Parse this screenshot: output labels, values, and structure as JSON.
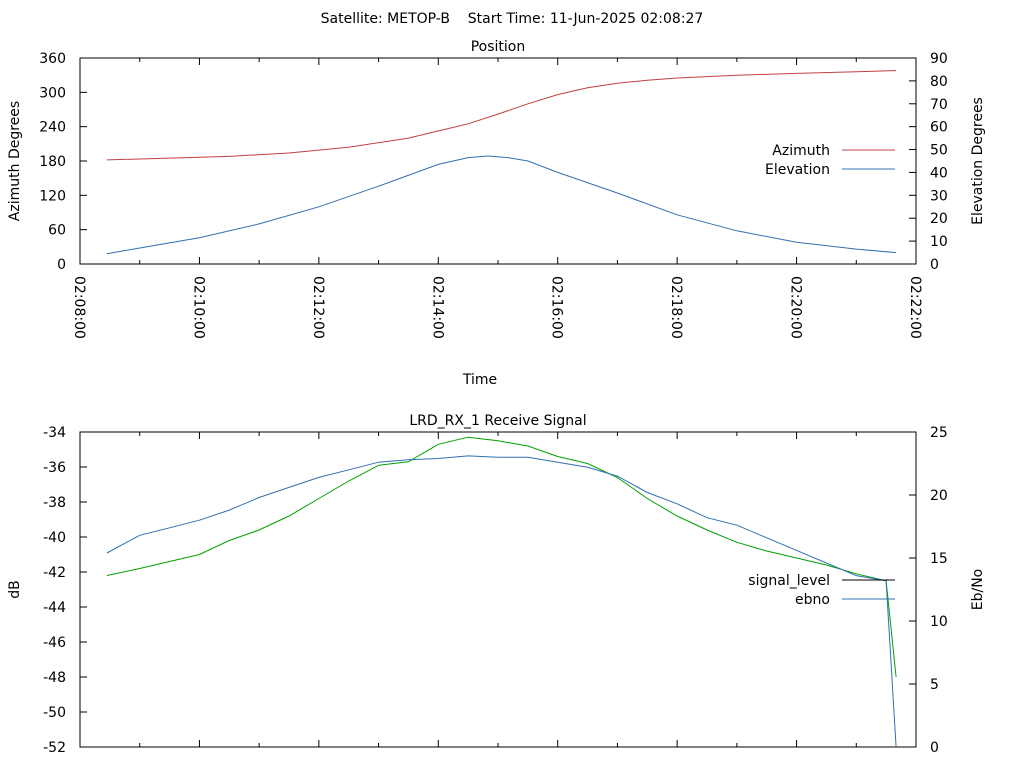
{
  "header": {
    "title": "Satellite: METOP-B    Start Time: 11-Jun-2025 02:08:27"
  },
  "chart_data": [
    {
      "type": "line",
      "title": "Position",
      "xlabel": "Time",
      "ylabel": "Azimuth Degrees",
      "y2label": "Elevation Degrees",
      "x_ticks": [
        "02:08:00",
        "02:10:00",
        "02:12:00",
        "02:14:00",
        "02:16:00",
        "02:18:00",
        "02:20:00",
        "02:22:00"
      ],
      "xlim": [
        "02:08:00",
        "02:22:00"
      ],
      "ylim": [
        0,
        360
      ],
      "y_ticks": [
        0,
        60,
        120,
        180,
        240,
        300,
        360
      ],
      "y2lim": [
        0,
        90
      ],
      "y2_ticks": [
        0,
        10,
        20,
        30,
        40,
        50,
        60,
        70,
        80,
        90
      ],
      "legend_position": "right",
      "grid": false,
      "series": [
        {
          "name": "Azimuth",
          "axis": "y",
          "color": "#c04040",
          "points": [
            [
              "02:08:27",
              182
            ],
            [
              "02:09:30",
              185
            ],
            [
              "02:10:30",
              188
            ],
            [
              "02:11:30",
              194
            ],
            [
              "02:12:30",
              204
            ],
            [
              "02:13:30",
              220
            ],
            [
              "02:14:30",
              245
            ],
            [
              "02:15:00",
              262
            ],
            [
              "02:15:30",
              280
            ],
            [
              "02:16:00",
              296
            ],
            [
              "02:16:30",
              308
            ],
            [
              "02:17:00",
              316
            ],
            [
              "02:17:30",
              321
            ],
            [
              "02:18:00",
              325
            ],
            [
              "02:19:00",
              330
            ],
            [
              "02:20:00",
              333
            ],
            [
              "02:21:00",
              336
            ],
            [
              "02:21:40",
              338
            ]
          ]
        },
        {
          "name": "Elevation",
          "axis": "y2",
          "color": "#3070b0",
          "points": [
            [
              "02:08:27",
              4.5
            ],
            [
              "02:09:00",
              7
            ],
            [
              "02:10:00",
              11.5
            ],
            [
              "02:11:00",
              17.5
            ],
            [
              "02:12:00",
              25
            ],
            [
              "02:13:00",
              34
            ],
            [
              "02:14:00",
              43.5
            ],
            [
              "02:14:30",
              46.5
            ],
            [
              "02:14:50",
              47.2
            ],
            [
              "02:15:10",
              46.5
            ],
            [
              "02:15:30",
              45
            ],
            [
              "02:16:00",
              40
            ],
            [
              "02:17:00",
              31
            ],
            [
              "02:18:00",
              21.5
            ],
            [
              "02:19:00",
              14.5
            ],
            [
              "02:20:00",
              9.5
            ],
            [
              "02:21:00",
              6.5
            ],
            [
              "02:21:40",
              5
            ]
          ]
        }
      ]
    },
    {
      "type": "line",
      "title": "LRD_RX_1 Receive Signal",
      "ylabel": "dB",
      "y2label": "Eb/No",
      "xlim": [
        "02:08:00",
        "02:22:00"
      ],
      "ylim": [
        -52,
        -34
      ],
      "y_ticks": [
        -52,
        -50,
        -48,
        -46,
        -44,
        -42,
        -40,
        -38,
        -36,
        -34
      ],
      "y2lim": [
        0,
        25
      ],
      "y2_ticks": [
        0,
        5,
        10,
        15,
        20,
        25
      ],
      "legend_position": "right",
      "grid": false,
      "series": [
        {
          "name": "signal_level",
          "axis": "y",
          "color": "#00a000",
          "legend_color": "#000000",
          "points": [
            [
              "02:08:27",
              -42.2
            ],
            [
              "02:09:00",
              -41.8
            ],
            [
              "02:09:30",
              -41.4
            ],
            [
              "02:10:00",
              -41.0
            ],
            [
              "02:10:30",
              -40.2
            ],
            [
              "02:11:00",
              -39.6
            ],
            [
              "02:11:30",
              -38.8
            ],
            [
              "02:12:00",
              -37.8
            ],
            [
              "02:12:30",
              -36.8
            ],
            [
              "02:13:00",
              -35.9
            ],
            [
              "02:13:30",
              -35.7
            ],
            [
              "02:14:00",
              -34.7
            ],
            [
              "02:14:30",
              -34.3
            ],
            [
              "02:15:00",
              -34.5
            ],
            [
              "02:15:30",
              -34.8
            ],
            [
              "02:16:00",
              -35.4
            ],
            [
              "02:16:30",
              -35.8
            ],
            [
              "02:17:00",
              -36.6
            ],
            [
              "02:17:30",
              -37.8
            ],
            [
              "02:18:00",
              -38.8
            ],
            [
              "02:18:30",
              -39.6
            ],
            [
              "02:19:00",
              -40.3
            ],
            [
              "02:19:30",
              -40.8
            ],
            [
              "02:20:00",
              -41.2
            ],
            [
              "02:20:30",
              -41.6
            ],
            [
              "02:21:00",
              -42.1
            ],
            [
              "02:21:30",
              -42.5
            ],
            [
              "02:21:40",
              -48.0
            ]
          ]
        },
        {
          "name": "ebno",
          "axis": "y2",
          "color": "#3070b0",
          "points": [
            [
              "02:08:27",
              15.4
            ],
            [
              "02:09:00",
              16.8
            ],
            [
              "02:09:30",
              17.4
            ],
            [
              "02:10:00",
              18.0
            ],
            [
              "02:10:30",
              18.8
            ],
            [
              "02:11:00",
              19.8
            ],
            [
              "02:11:30",
              20.6
            ],
            [
              "02:12:00",
              21.4
            ],
            [
              "02:12:30",
              22.0
            ],
            [
              "02:13:00",
              22.6
            ],
            [
              "02:13:30",
              22.8
            ],
            [
              "02:14:00",
              22.9
            ],
            [
              "02:14:30",
              23.1
            ],
            [
              "02:15:00",
              23.0
            ],
            [
              "02:15:30",
              23.0
            ],
            [
              "02:16:00",
              22.6
            ],
            [
              "02:16:30",
              22.2
            ],
            [
              "02:17:00",
              21.5
            ],
            [
              "02:17:30",
              20.2
            ],
            [
              "02:18:00",
              19.3
            ],
            [
              "02:18:30",
              18.2
            ],
            [
              "02:19:00",
              17.6
            ],
            [
              "02:19:30",
              16.6
            ],
            [
              "02:20:00",
              15.6
            ],
            [
              "02:20:30",
              14.6
            ],
            [
              "02:21:00",
              13.6
            ],
            [
              "02:21:30",
              13.2
            ],
            [
              "02:21:40",
              0.0
            ]
          ]
        }
      ]
    }
  ]
}
